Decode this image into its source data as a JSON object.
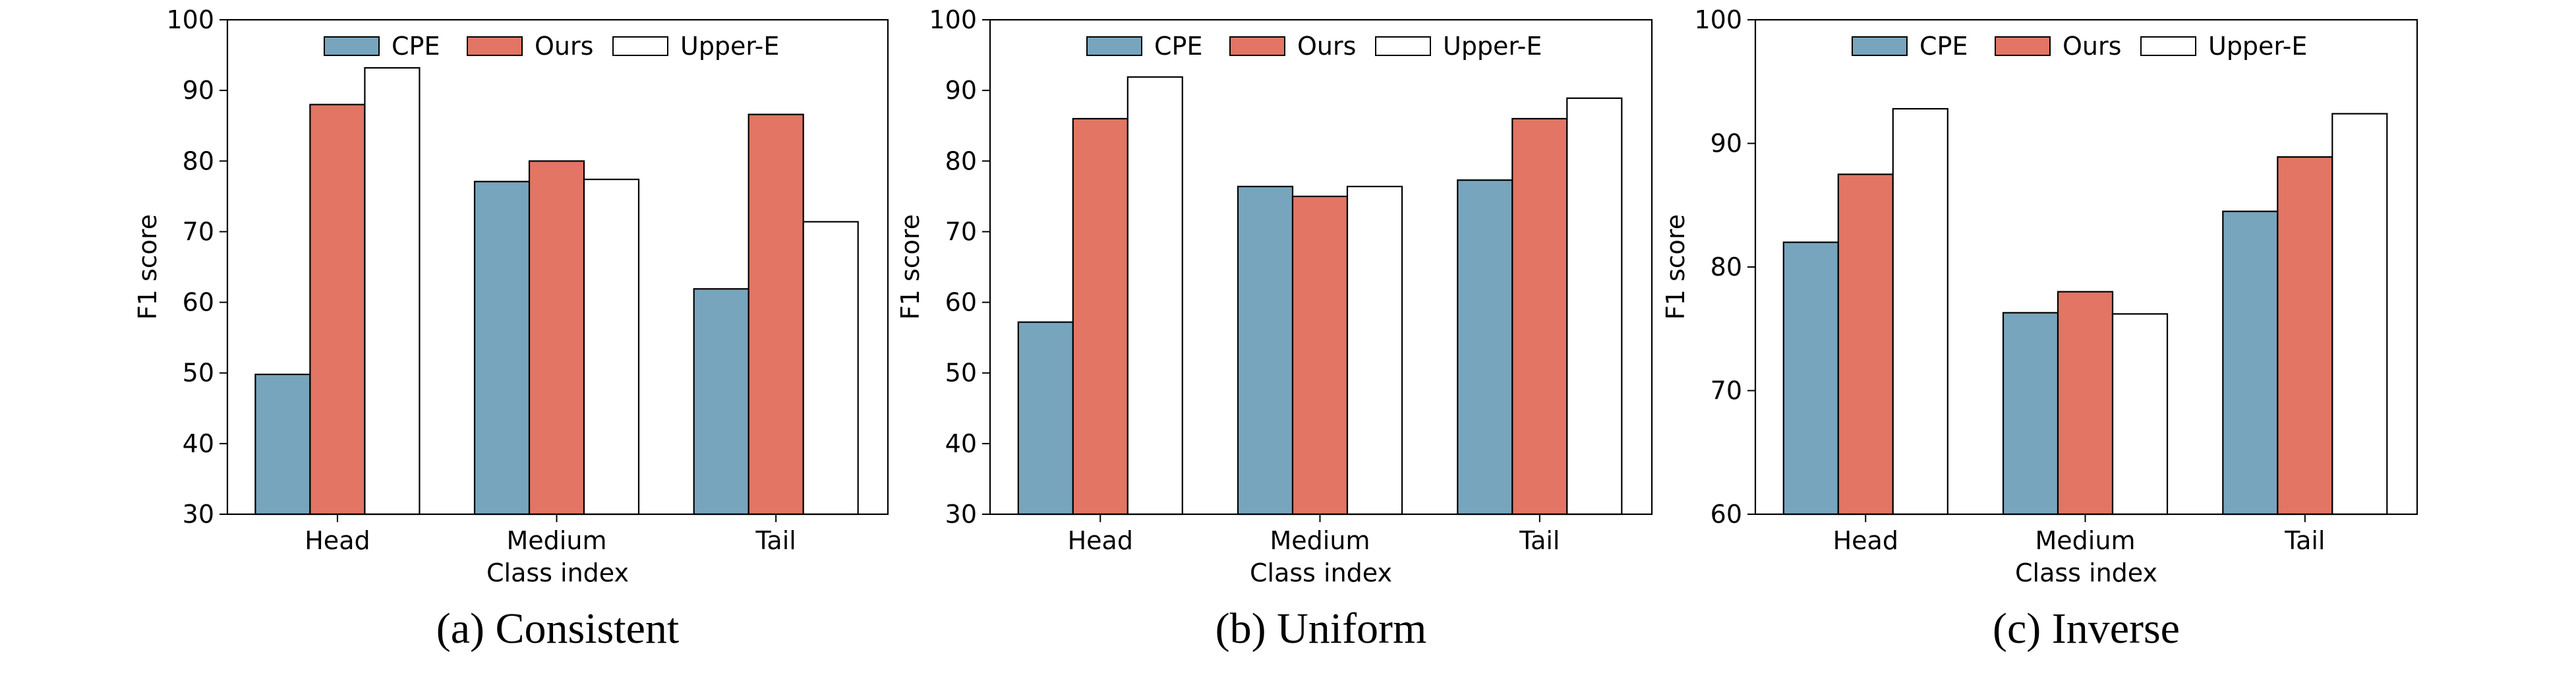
{
  "colors": {
    "CPE": "#77a5bd",
    "Ours": "#e27563",
    "Upper-E": "#ffffff",
    "edge": "#000000"
  },
  "chart_data": [
    {
      "type": "bar",
      "caption": "(a) Consistent",
      "categories": [
        "Head",
        "Medium",
        "Tail"
      ],
      "xlabel": "Class index",
      "ylabel": "F1 score",
      "ylim": [
        30,
        100
      ],
      "yticks": [
        30,
        40,
        50,
        60,
        70,
        80,
        90,
        100
      ],
      "legend": "top-center",
      "series": [
        {
          "name": "CPE",
          "values": [
            49.8,
            77.1,
            61.9
          ]
        },
        {
          "name": "Ours",
          "values": [
            88.0,
            80.0,
            86.6
          ]
        },
        {
          "name": "Upper-E",
          "values": [
            93.2,
            77.4,
            71.4
          ]
        }
      ]
    },
    {
      "type": "bar",
      "caption": "(b) Uniform",
      "categories": [
        "Head",
        "Medium",
        "Tail"
      ],
      "xlabel": "Class index",
      "ylabel": "F1 score",
      "ylim": [
        30,
        100
      ],
      "yticks": [
        30,
        40,
        50,
        60,
        70,
        80,
        90,
        100
      ],
      "legend": "top-center",
      "series": [
        {
          "name": "CPE",
          "values": [
            57.2,
            76.4,
            77.3
          ]
        },
        {
          "name": "Ours",
          "values": [
            86.0,
            75.0,
            86.0
          ]
        },
        {
          "name": "Upper-E",
          "values": [
            91.9,
            76.4,
            88.9
          ]
        }
      ]
    },
    {
      "type": "bar",
      "caption": "(c) Inverse",
      "categories": [
        "Head",
        "Medium",
        "Tail"
      ],
      "xlabel": "Class index",
      "ylabel": "F1 score",
      "ylim": [
        60,
        100
      ],
      "yticks": [
        60,
        70,
        80,
        90,
        100
      ],
      "legend": "top-center",
      "series": [
        {
          "name": "CPE",
          "values": [
            82.0,
            76.3,
            84.5
          ]
        },
        {
          "name": "Ours",
          "values": [
            87.5,
            78.0,
            88.9
          ]
        },
        {
          "name": "Upper-E",
          "values": [
            92.8,
            76.2,
            92.4
          ]
        }
      ]
    }
  ]
}
